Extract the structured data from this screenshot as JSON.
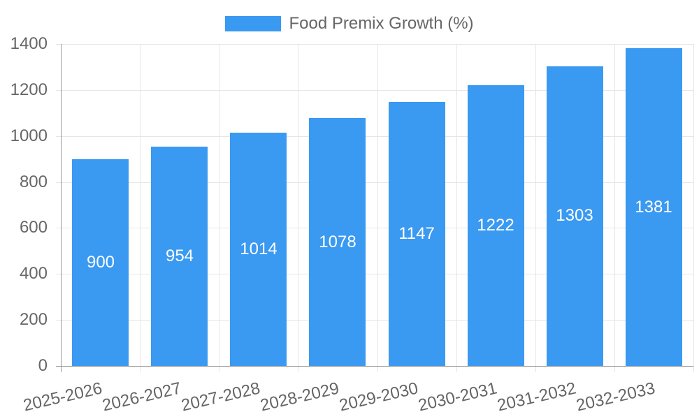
{
  "legend": {
    "label": "Food Premix Growth (%)"
  },
  "chart_data": {
    "type": "bar",
    "title": "",
    "categories": [
      "2025-2026",
      "2026-2027",
      "2027-2028",
      "2028-2029",
      "2029-2030",
      "2030-2031",
      "2031-2032",
      "2032-2033"
    ],
    "series": [
      {
        "name": "Food Premix Growth (%)",
        "values": [
          900,
          954,
          1014,
          1078,
          1147,
          1222,
          1303,
          1381
        ]
      }
    ],
    "xlabel": "",
    "ylabel": "",
    "ylim": [
      0,
      1400
    ],
    "yticks": [
      0,
      200,
      400,
      600,
      800,
      1000,
      1200,
      1400
    ],
    "grid": true,
    "legend_position": "top-center",
    "data_labels": "inside-center-white",
    "colors": {
      "bar": "#3a99f1",
      "bar_label": "#ffffff",
      "axis_text": "#666666",
      "legend_text": "#666666",
      "gridline": "#e6e6e6",
      "axis_border": "#999999",
      "background": "#ffffff"
    }
  }
}
